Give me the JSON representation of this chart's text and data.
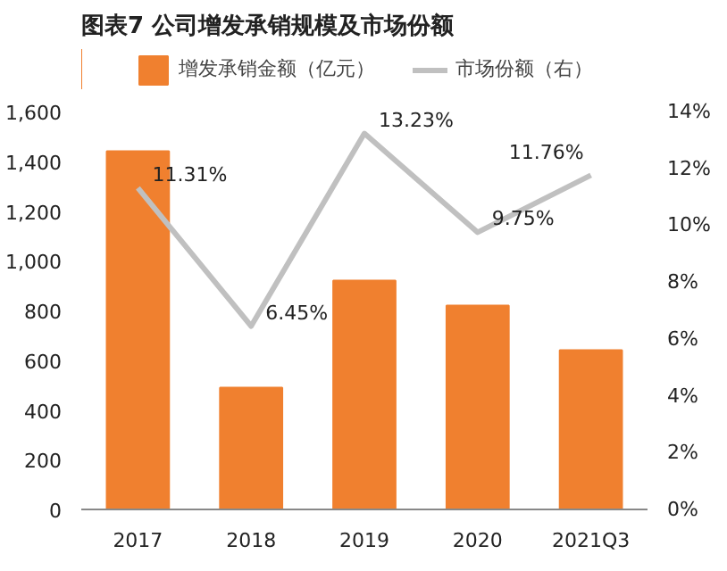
{
  "chart_data": {
    "type": "bar",
    "title": "图表7    公司增发承销规模及市场份额",
    "categories": [
      "2017",
      "2018",
      "2019",
      "2020",
      "2021Q3"
    ],
    "series": [
      {
        "name": "增发承销金额（亿元）",
        "color": "#f0802f",
        "values": [
          1440,
          490,
          920,
          820,
          640
        ]
      },
      {
        "type": "line",
        "name": "市场份额（右）",
        "color": "#c0c0c0",
        "axis": "y2",
        "values": [
          11.31,
          6.45,
          13.23,
          9.75,
          11.76
        ],
        "value_labels": [
          "11.31%",
          "6.45%",
          "13.23%",
          "9.75%",
          "11.76%"
        ]
      }
    ],
    "ylim": [
      0,
      1600
    ],
    "yticks": [
      0,
      {
        "value": 200,
        "label": "200"
      },
      {
        "value": 400,
        "label": "400"
      },
      {
        "value": 600,
        "label": "600"
      },
      {
        "value": 800,
        "label": "800"
      },
      {
        "value": 1000,
        "label": "1,000"
      },
      {
        "value": 1200,
        "label": "1,200"
      },
      {
        "value": 1400,
        "label": "1,400"
      },
      {
        "value": 1600,
        "label": "1,600"
      }
    ],
    "y2lim": [
      0,
      14
    ],
    "y2ticks": [
      {
        "value": 0,
        "label": "0%"
      },
      {
        "value": 2,
        "label": "2%"
      },
      {
        "value": 4,
        "label": "4%"
      },
      {
        "value": 6,
        "label": "6%"
      },
      {
        "value": 8,
        "label": "8%"
      },
      {
        "value": 10,
        "label": "10%"
      },
      {
        "value": 12,
        "label": "12%"
      },
      {
        "value": 14,
        "label": "14%"
      }
    ],
    "legend": "top"
  }
}
